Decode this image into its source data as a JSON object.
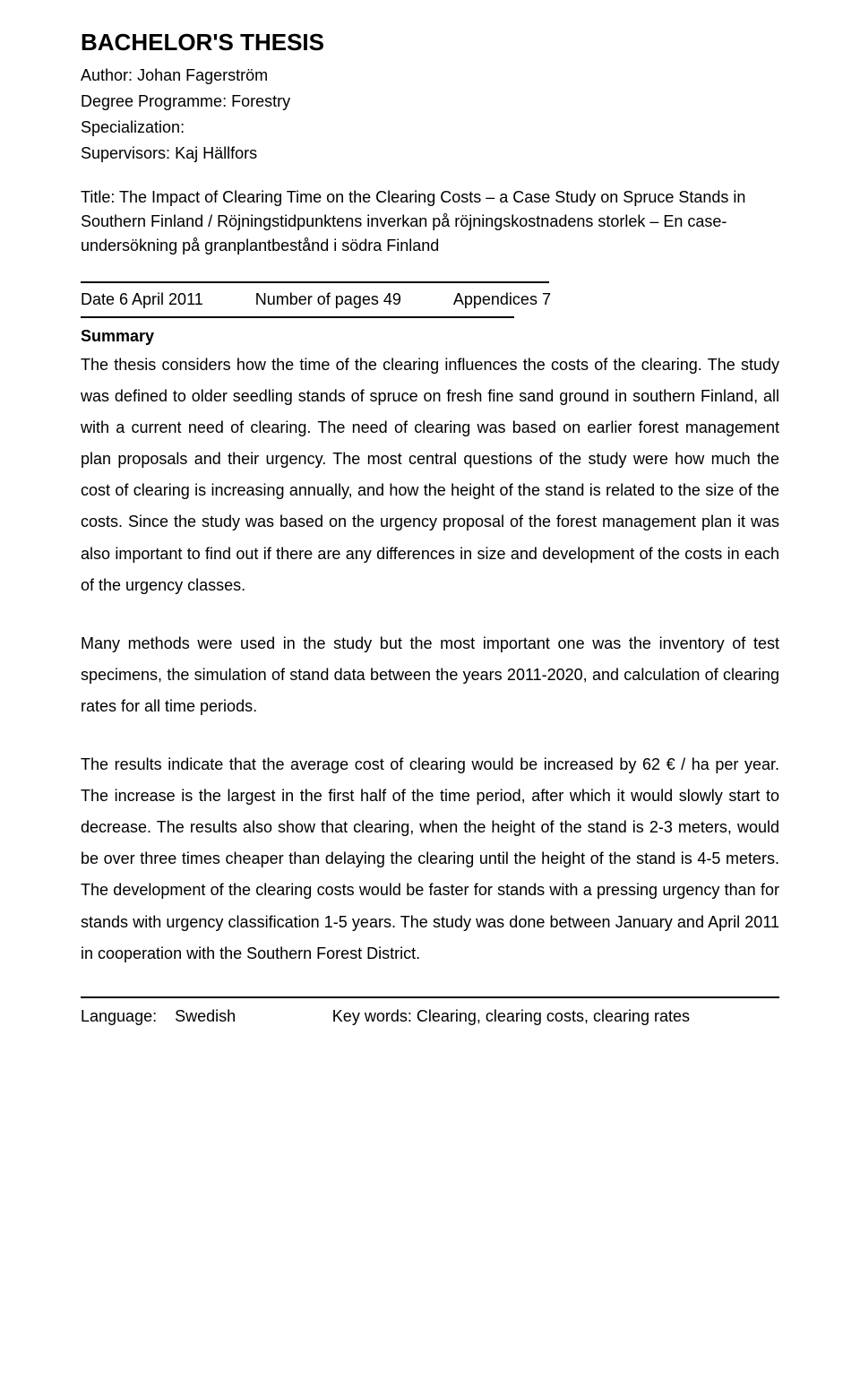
{
  "title": "BACHELOR'S THESIS",
  "meta": {
    "author_label": "Author:",
    "author": "Johan Fagerström",
    "degree_label": "Degree Programme:",
    "degree": "Forestry",
    "specialization_label": "Specialization:",
    "specialization": "",
    "supervisors_label": "Supervisors:",
    "supervisors": "Kaj Hällfors"
  },
  "subtitle_label": "Title:",
  "subtitle": "The Impact of Clearing Time on the Clearing Costs – a Case Study on Spruce Stands in Southern Finland / Röjningstidpunktens inverkan på röjningskostnadens storlek – En case-undersökning på granplantbestånd i södra Finland",
  "date_row": {
    "date": "Date 6 April 2011",
    "pages": "Number of pages 49",
    "appendices": "Appendices 7"
  },
  "summary_heading": "Summary",
  "summary_p1": "The thesis considers how the time of the clearing influences the costs of the clearing. The study was defined to older seedling stands of spruce on fresh fine sand ground in southern Finland, all with a current need of clearing. The need of clearing was based on earlier forest management plan proposals and their urgency. The most central questions of the study were how much the cost of clearing is increasing annually, and how the height of the stand is related to the size of the costs. Since the study was based on the urgency proposal of the forest management plan it was also important to find out if there are any differences in size and development of the costs in each of the urgency classes.",
  "summary_p2": "Many methods were used in the study but the most important one was the inventory of test specimens, the simulation of stand data between the years 2011-2020, and calculation of clearing rates for all time periods.",
  "summary_p3": "The results indicate that the average cost of clearing would be increased by 62 € / ha per year. The increase is the largest in the first half of the time period, after which it would slowly start to decrease. The results also show that clearing, when the height of the stand is 2-3 meters, would be over three times cheaper than delaying the clearing until the height of the stand is 4-5 meters. The development of the clearing costs would be faster for stands with a pressing urgency than for stands with urgency classification 1-5 years. The study was done between January and April 2011 in cooperation with the Southern Forest District.",
  "footer": {
    "language_label": "Language:",
    "language": "Swedish",
    "keywords_label": "Key words:",
    "keywords": "Clearing, clearing costs, clearing rates"
  }
}
